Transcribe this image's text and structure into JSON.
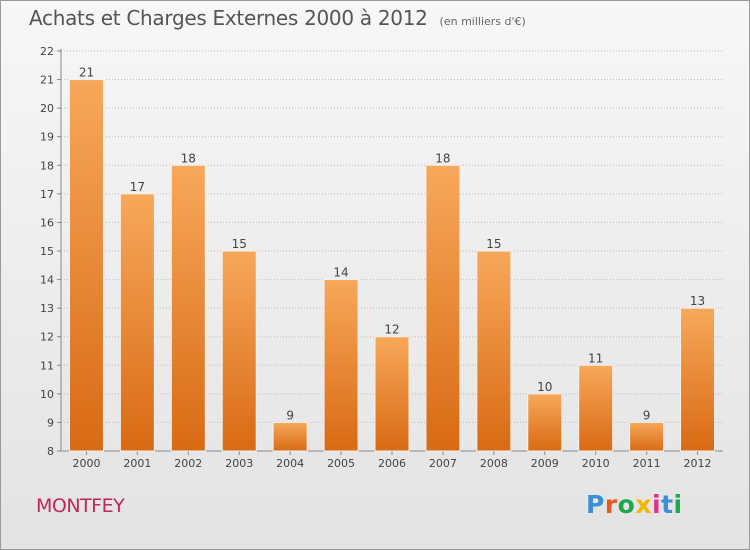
{
  "title": "Achats et Charges Externes 2000 à 2012",
  "subtitle": "(en milliers d'€)",
  "city": "MONTFEY",
  "logo": {
    "text": "Proxiti",
    "letter_colors": [
      "#3a8fd8",
      "#e85a1b",
      "#1fa84a",
      "#f2b800",
      "#e0338a",
      "#3a8fd8",
      "#1fa84a"
    ]
  },
  "colors": {
    "bar_top": "#f7a85a",
    "bar_bottom": "#d96a14",
    "title": "#555555",
    "city": "#c0265d",
    "grid": "#bbbbbb"
  },
  "chart_data": {
    "type": "bar",
    "categories": [
      "2000",
      "2001",
      "2002",
      "2003",
      "2004",
      "2005",
      "2006",
      "2007",
      "2008",
      "2009",
      "2010",
      "2011",
      "2012"
    ],
    "values": [
      21,
      17,
      18,
      15,
      9,
      14,
      12,
      18,
      15,
      10,
      11,
      9,
      13
    ],
    "ylim": [
      8,
      22
    ],
    "yticks": [
      8,
      9,
      10,
      11,
      12,
      13,
      14,
      15,
      16,
      17,
      18,
      19,
      20,
      21,
      22
    ],
    "grid": true,
    "data_labels": true
  }
}
